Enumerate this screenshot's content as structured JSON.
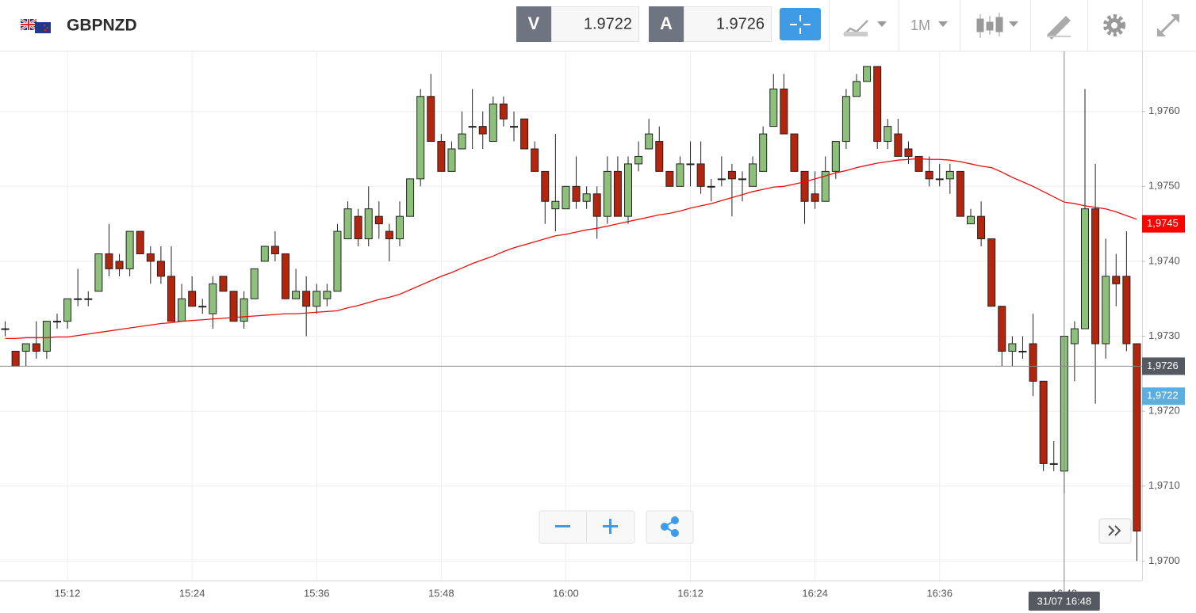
{
  "header": {
    "symbol": "GBPNZD",
    "bid_label": "V",
    "bid": 1.9722,
    "ask_label": "A",
    "ask": 1.9726,
    "timeframe": "1M"
  },
  "chart_data": {
    "type": "candlestick",
    "categories": [
      null,
      null,
      null,
      null,
      null,
      null,
      "15:12",
      null,
      null,
      null,
      null,
      null,
      null,
      null,
      null,
      null,
      null,
      null,
      "15:24",
      null,
      null,
      null,
      null,
      null,
      null,
      null,
      null,
      null,
      null,
      null,
      "15:36",
      null,
      null,
      null,
      null,
      null,
      null,
      null,
      null,
      null,
      null,
      null,
      "15:48",
      null,
      null,
      null,
      null,
      null,
      null,
      null,
      null,
      null,
      null,
      null,
      "16:00",
      null,
      null,
      null,
      null,
      null,
      null,
      null,
      null,
      null,
      null,
      null,
      "16:12",
      null,
      null,
      null,
      null,
      null,
      null,
      null,
      null,
      null,
      null,
      null,
      "16:24",
      null,
      null,
      null,
      null,
      null,
      null,
      null,
      null,
      null,
      null,
      null,
      "16:36",
      null,
      null,
      null,
      null,
      null,
      null,
      null,
      null,
      null,
      null,
      null,
      "16:48",
      null,
      null,
      null,
      null,
      null,
      null,
      null
    ],
    "open": [
      1.9731,
      1.9728,
      1.9728,
      1.9729,
      1.9728,
      1.9732,
      1.9732,
      1.9735,
      1.9735,
      1.9736,
      1.9741,
      1.974,
      1.9739,
      1.9744,
      1.9741,
      1.974,
      1.9738,
      1.9732,
      1.9736,
      1.9734,
      1.9733,
      1.9738,
      1.9736,
      1.9732,
      1.9735,
      1.974,
      1.9742,
      1.9741,
      1.9735,
      1.9736,
      1.9734,
      1.9735,
      1.9736,
      1.9743,
      1.9746,
      1.9743,
      1.9746,
      1.9744,
      1.9743,
      1.9746,
      1.9751,
      1.9762,
      1.9756,
      1.9752,
      1.9755,
      1.9758,
      1.9758,
      1.9756,
      1.9761,
      1.9758,
      1.9759,
      1.9755,
      1.9752,
      1.9747,
      1.9747,
      1.975,
      1.9748,
      1.9749,
      1.9746,
      1.9752,
      1.9746,
      1.9753,
      1.9755,
      1.9756,
      1.9752,
      1.975,
      1.9753,
      1.9753,
      1.975,
      1.9751,
      1.9752,
      1.9751,
      1.975,
      1.9752,
      1.9758,
      1.9763,
      1.9757,
      1.9752,
      1.9749,
      1.9748,
      1.9752,
      1.9756,
      1.9762,
      1.9764,
      1.9766,
      1.9756,
      1.9757,
      1.9755,
      1.9754,
      1.9752,
      1.9751,
      1.9751,
      1.9752,
      1.9745,
      1.9746,
      1.9743,
      1.9734,
      1.9728,
      1.9728,
      1.9729,
      1.9724,
      1.9713,
      1.9712,
      1.9729,
      1.9731,
      1.9747,
      1.9729,
      1.9738,
      1.9738,
      1.9729
    ],
    "high": [
      1.9732,
      1.9728,
      1.9729,
      1.9732,
      1.9732,
      1.9733,
      1.9735,
      1.9739,
      1.9736,
      1.9741,
      1.9745,
      1.9741,
      1.9744,
      1.9744,
      1.9742,
      1.9742,
      1.9742,
      1.9737,
      1.9738,
      1.9735,
      1.9738,
      1.9738,
      1.9736,
      1.9736,
      1.9739,
      1.9742,
      1.9744,
      1.9741,
      1.9739,
      1.9738,
      1.9737,
      1.9737,
      1.9745,
      1.9748,
      1.9747,
      1.975,
      1.9748,
      1.9745,
      1.9748,
      1.9751,
      1.9763,
      1.9765,
      1.9757,
      1.9756,
      1.976,
      1.9763,
      1.976,
      1.9762,
      1.9762,
      1.976,
      1.9759,
      1.9756,
      1.9752,
      1.9757,
      1.975,
      1.9754,
      1.975,
      1.975,
      1.9754,
      1.9754,
      1.9754,
      1.9756,
      1.9759,
      1.9758,
      1.9752,
      1.9754,
      1.9756,
      1.9756,
      1.9751,
      1.9754,
      1.9753,
      1.9752,
      1.9754,
      1.9758,
      1.9765,
      1.9765,
      1.9757,
      1.9752,
      1.9752,
      1.9754,
      1.9756,
      1.9763,
      1.9765,
      1.9766,
      1.9766,
      1.9759,
      1.9759,
      1.9756,
      1.9754,
      1.9754,
      1.9753,
      1.9753,
      1.9752,
      1.9747,
      1.9748,
      1.9743,
      1.9734,
      1.973,
      1.973,
      1.9733,
      1.9724,
      1.9716,
      1.973,
      1.9732,
      1.9763,
      1.9753,
      1.9743,
      1.9741,
      1.9744,
      1.9729
    ],
    "low": [
      1.973,
      1.9726,
      1.9726,
      1.9727,
      1.9727,
      1.9731,
      1.9731,
      1.9734,
      1.9734,
      1.9736,
      1.9738,
      1.9738,
      1.9738,
      1.9741,
      1.9737,
      1.9737,
      1.9732,
      1.9732,
      1.9734,
      1.9733,
      1.9731,
      1.9736,
      1.9732,
      1.9731,
      1.9735,
      1.974,
      1.974,
      1.9735,
      1.9735,
      1.973,
      1.9733,
      1.9734,
      1.9736,
      1.9743,
      1.9742,
      1.9742,
      1.9743,
      1.974,
      1.9742,
      1.9746,
      1.975,
      1.9756,
      1.9752,
      1.9752,
      1.9755,
      1.9755,
      1.9755,
      1.9756,
      1.9758,
      1.9756,
      1.9755,
      1.9752,
      1.9745,
      1.9744,
      1.9747,
      1.9747,
      1.9747,
      1.9743,
      1.9745,
      1.9746,
      1.9745,
      1.9752,
      1.9755,
      1.9752,
      1.975,
      1.975,
      1.975,
      1.9749,
      1.9748,
      1.975,
      1.9746,
      1.9748,
      1.975,
      1.9752,
      1.9758,
      1.9757,
      1.9752,
      1.9745,
      1.9747,
      1.9748,
      1.9751,
      1.9755,
      1.9762,
      1.9764,
      1.9755,
      1.9755,
      1.9754,
      1.9753,
      1.9752,
      1.975,
      1.975,
      1.9749,
      1.9746,
      1.9745,
      1.9742,
      1.9734,
      1.9726,
      1.9726,
      1.9727,
      1.9722,
      1.9712,
      1.9712,
      1.9709,
      1.9724,
      1.9731,
      1.9721,
      1.9727,
      1.9734,
      1.9728,
      1.97
    ],
    "close": [
      1.9731,
      1.9726,
      1.9729,
      1.9728,
      1.9732,
      1.9732,
      1.9735,
      1.9735,
      1.9735,
      1.9741,
      1.9739,
      1.9739,
      1.9744,
      1.9741,
      1.974,
      1.9738,
      1.9732,
      1.9735,
      1.9734,
      1.9734,
      1.9737,
      1.9736,
      1.9732,
      1.9735,
      1.9739,
      1.9742,
      1.9741,
      1.9735,
      1.9736,
      1.9734,
      1.9736,
      1.9736,
      1.9744,
      1.9747,
      1.9743,
      1.9747,
      1.9745,
      1.9743,
      1.9746,
      1.9751,
      1.9762,
      1.9756,
      1.9752,
      1.9755,
      1.9757,
      1.9758,
      1.9757,
      1.9761,
      1.9759,
      1.9758,
      1.9755,
      1.9752,
      1.9748,
      1.9748,
      1.975,
      1.9748,
      1.9749,
      1.9746,
      1.9752,
      1.9746,
      1.9753,
      1.9754,
      1.9757,
      1.9752,
      1.975,
      1.9753,
      1.9753,
      1.975,
      1.975,
      1.9751,
      1.9751,
      1.9751,
      1.9753,
      1.9757,
      1.9763,
      1.9757,
      1.9752,
      1.9748,
      1.9748,
      1.9752,
      1.9756,
      1.9762,
      1.9764,
      1.9766,
      1.9756,
      1.9758,
      1.9754,
      1.9754,
      1.9752,
      1.9751,
      1.9751,
      1.9752,
      1.9746,
      1.9746,
      1.9743,
      1.9734,
      1.9728,
      1.9729,
      1.9728,
      1.9724,
      1.9713,
      1.9713,
      1.973,
      1.9731,
      1.9747,
      1.9729,
      1.9738,
      1.9737,
      1.9729,
      1.9704
    ],
    "up_color": "#8dc07a",
    "down_color": "#b3260d",
    "moving_average": {
      "color": "#e8100c",
      "values": [
        1.97297,
        1.97297,
        1.97298,
        1.97298,
        1.97298,
        1.97299,
        1.97299,
        1.97301,
        1.97303,
        1.97305,
        1.97307,
        1.97309,
        1.97311,
        1.97313,
        1.97315,
        1.97317,
        1.97318,
        1.9732,
        1.97321,
        1.97322,
        1.97323,
        1.97324,
        1.97325,
        1.97326,
        1.97327,
        1.97328,
        1.97329,
        1.9733,
        1.9733,
        1.97331,
        1.97332,
        1.97333,
        1.97334,
        1.97338,
        1.97341,
        1.97345,
        1.97349,
        1.97352,
        1.97356,
        1.97362,
        1.97368,
        1.97374,
        1.9738,
        1.97385,
        1.97391,
        1.97397,
        1.97402,
        1.97407,
        1.97413,
        1.97418,
        1.97422,
        1.97426,
        1.9743,
        1.97434,
        1.97436,
        1.97439,
        1.97442,
        1.97444,
        1.97447,
        1.9745,
        1.97453,
        1.97456,
        1.97459,
        1.97462,
        1.97464,
        1.97467,
        1.97471,
        1.97474,
        1.97477,
        1.97481,
        1.97485,
        1.97489,
        1.97493,
        1.97496,
        1.97499,
        1.975,
        1.97503,
        1.97506,
        1.9751,
        1.97514,
        1.97518,
        1.97521,
        1.97525,
        1.97528,
        1.97531,
        1.97533,
        1.97535,
        1.97536,
        1.97537,
        1.97536,
        1.97536,
        1.97535,
        1.97533,
        1.9753,
        1.97527,
        1.97525,
        1.97519,
        1.97512,
        1.97506,
        1.975,
        1.97493,
        1.97486,
        1.97479,
        1.97477,
        1.97474,
        1.97472,
        1.9747,
        1.97466,
        1.97461,
        1.97456
      ]
    },
    "ylim": [
      1.96974,
      1.9768
    ],
    "yticks": [
      {
        "value": 1.97,
        "label": "1,9700"
      },
      {
        "value": 1.971,
        "label": "1,9710"
      },
      {
        "value": 1.972,
        "label": "1,9720"
      },
      {
        "value": 1.973,
        "label": "1,9730"
      },
      {
        "value": 1.974,
        "label": "1,9740"
      },
      {
        "value": 1.975,
        "label": "1,9750"
      },
      {
        "value": 1.976,
        "label": "1,9760"
      }
    ],
    "grid": true,
    "price_markers": [
      {
        "value": 1.9745,
        "label": "1,9745",
        "color": "#ff0000",
        "line": false
      },
      {
        "value": 1.9726,
        "label": "1,9726",
        "color": "#555a62",
        "line": true
      },
      {
        "value": 1.9722,
        "label": "1,9722",
        "color": "#5aaee0",
        "line": false
      }
    ],
    "crosshair": {
      "time_label": "31/07 16:48"
    }
  }
}
